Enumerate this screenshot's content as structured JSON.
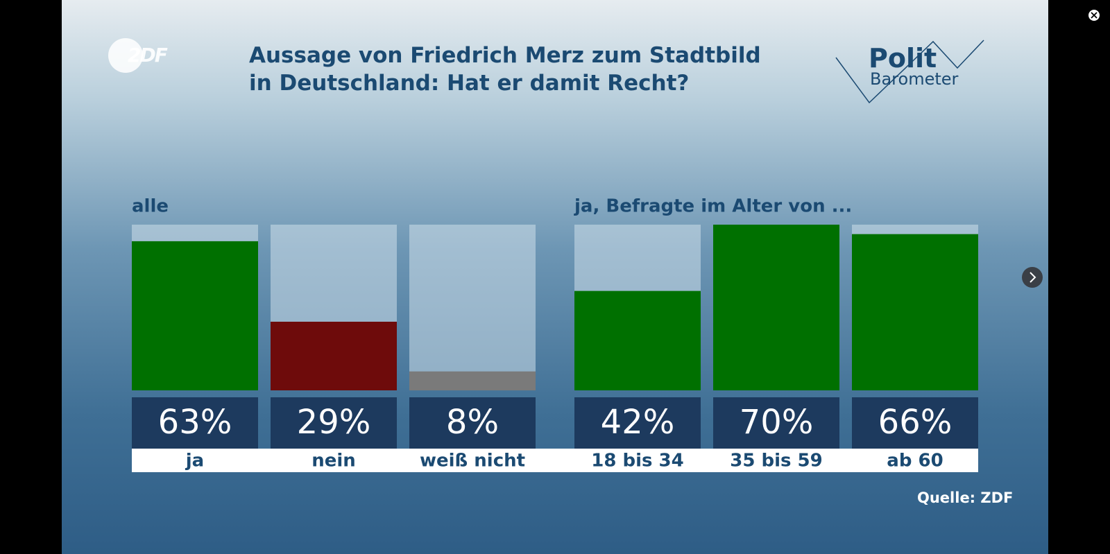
{
  "title": "Aussage von Friedrich Merz zum Stadtbild in Deutschland: Hat er damit Recht?",
  "logo": "2DF",
  "brand": [
    "Polit",
    "Barometer"
  ],
  "source": "Quelle: ZDF",
  "chart_data": [
    {
      "type": "bar",
      "title": "alle",
      "categories": [
        "ja",
        "nein",
        "weiß nicht"
      ],
      "values": [
        63,
        29,
        8
      ],
      "value_labels": [
        "63%",
        "29%",
        "8%"
      ],
      "colors": [
        "#007000",
        "#6e0b0b",
        "#7a7a7a"
      ],
      "ylim": [
        0,
        70
      ]
    },
    {
      "type": "bar",
      "title": "ja, Befragte im Alter von ...",
      "categories": [
        "18 bis 34",
        "35 bis 59",
        "ab 60"
      ],
      "values": [
        42,
        70,
        66
      ],
      "value_labels": [
        "42%",
        "70%",
        "66%"
      ],
      "colors": [
        "#007000",
        "#007000",
        "#007000"
      ],
      "ylim": [
        0,
        70
      ]
    }
  ]
}
